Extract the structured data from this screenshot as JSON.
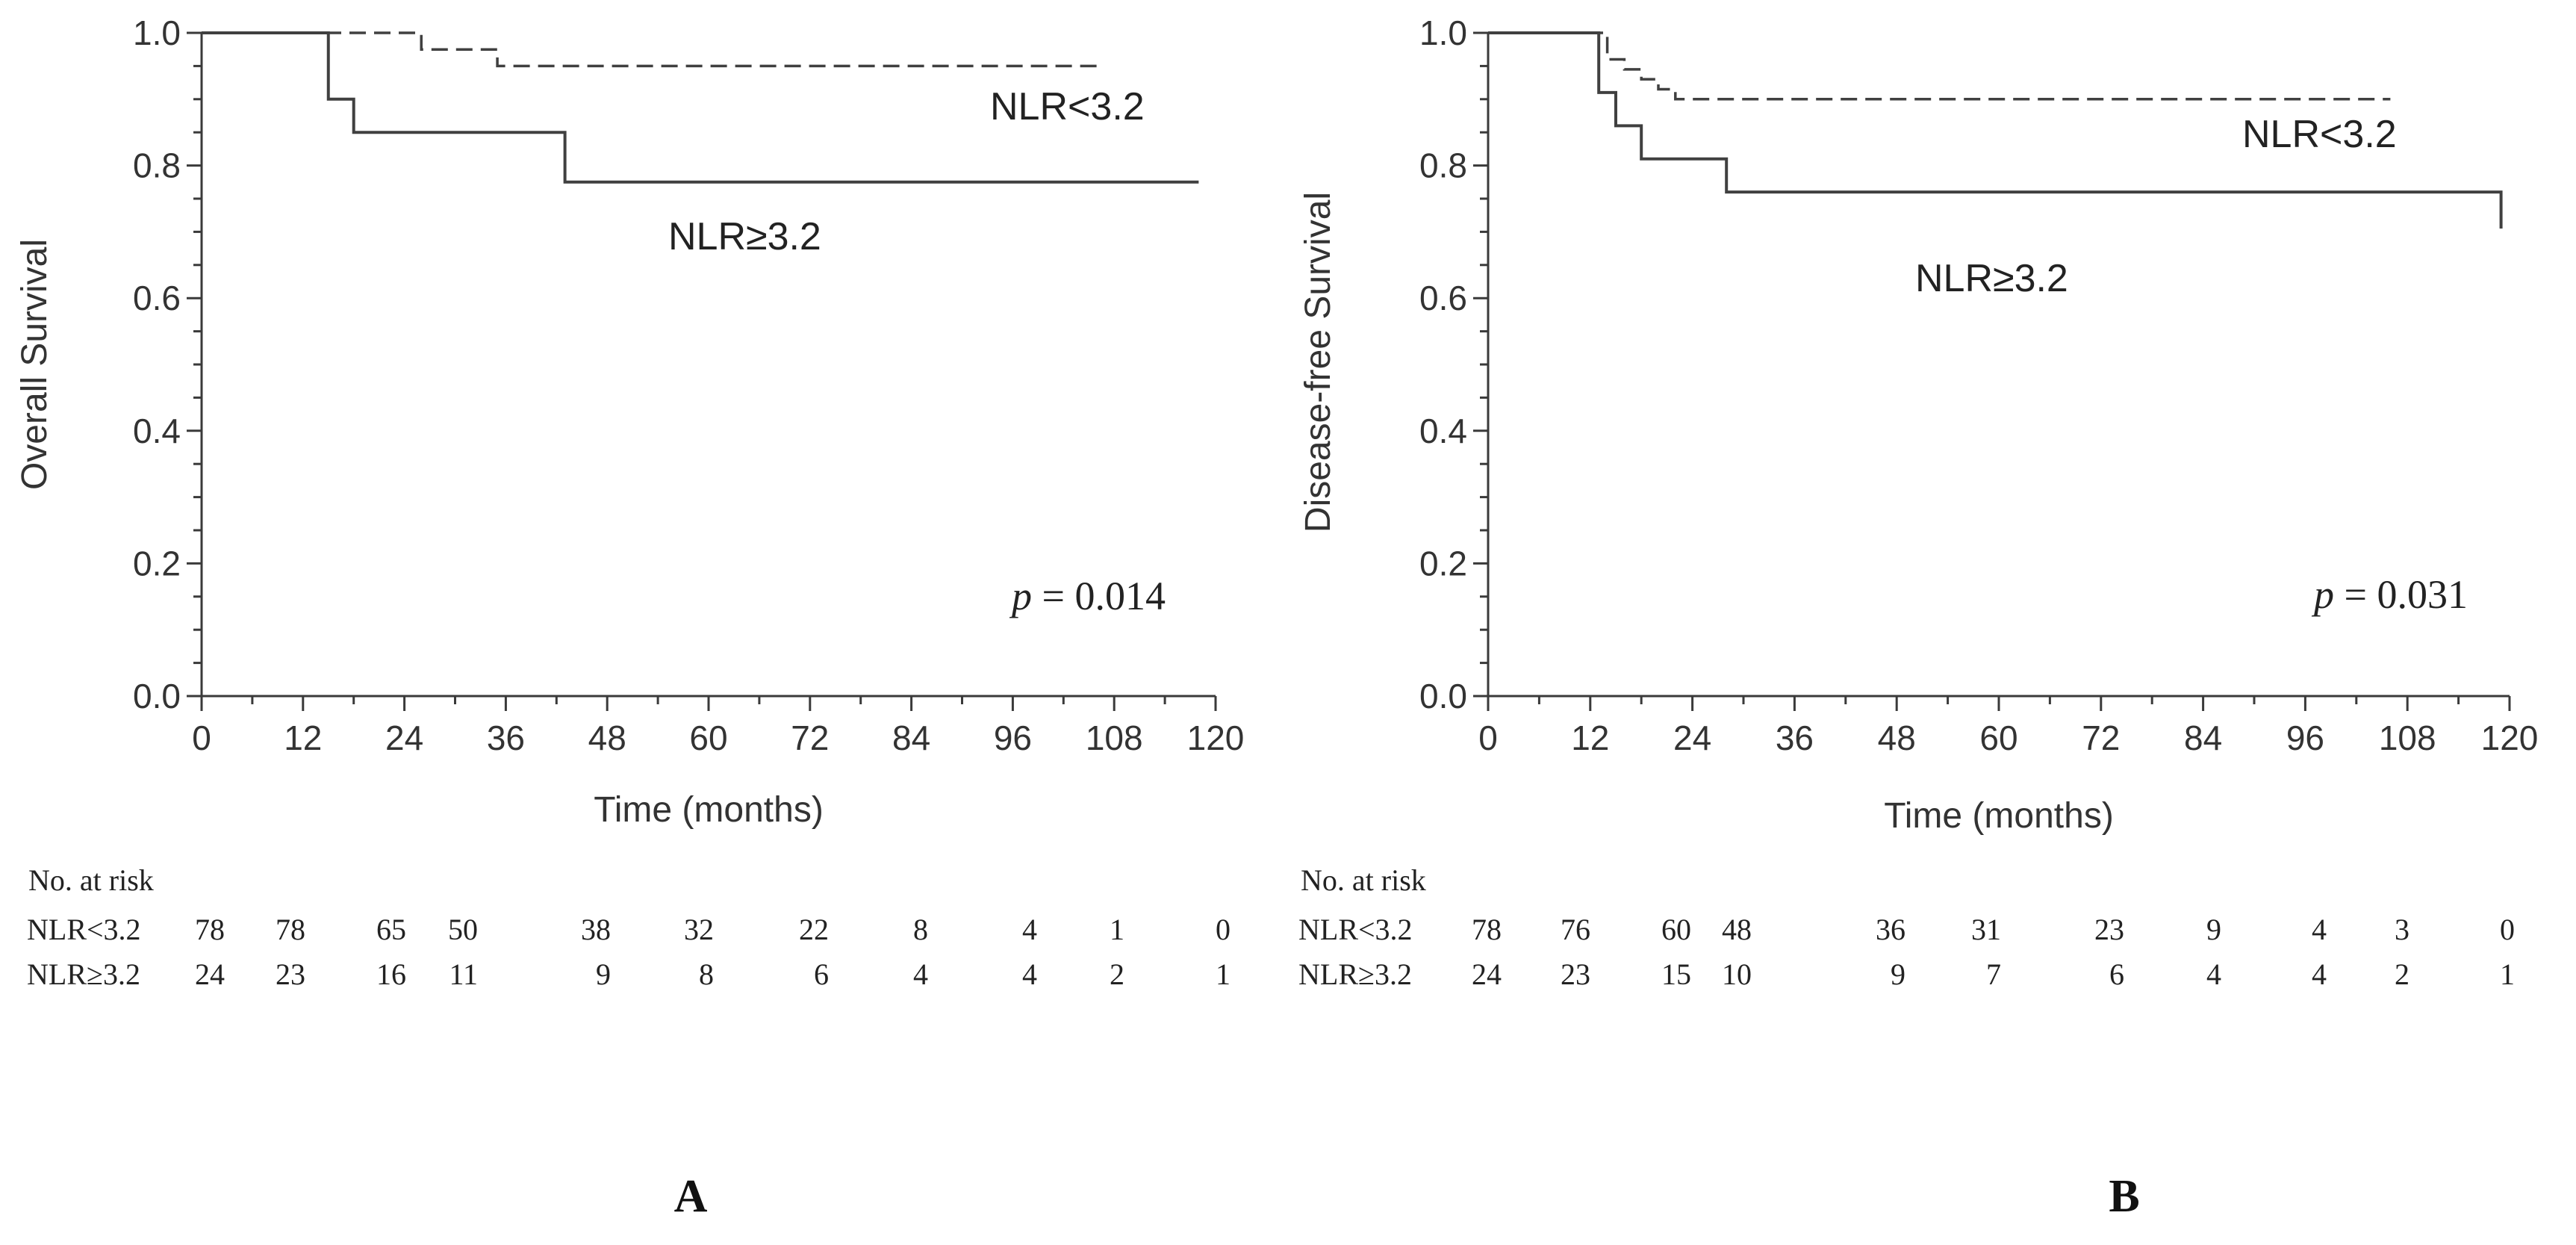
{
  "chart_data": [
    {
      "type": "line",
      "step": true,
      "panel": "A",
      "ylabel": "Overall Survival",
      "xlabel": "Time (months)",
      "xlim": [
        0,
        120
      ],
      "ylim": [
        0,
        1.0
      ],
      "x_ticks": [
        "0",
        "12",
        "24",
        "36",
        "48",
        "60",
        "72",
        "84",
        "96",
        "108",
        "120"
      ],
      "y_ticks": [
        "0.0",
        "0.2",
        "0.4",
        "0.6",
        "0.8",
        "1.0"
      ],
      "series": [
        {
          "name": "NLR<3.2",
          "style": "dashed",
          "x": [
            0,
            24,
            26,
            32,
            35,
            106
          ],
          "y": [
            1.0,
            1.0,
            0.975,
            0.975,
            0.95,
            0.95
          ]
        },
        {
          "name": "NLR≥3.2",
          "style": "solid",
          "x": [
            0,
            13,
            15,
            18,
            43,
            118
          ],
          "y": [
            1.0,
            1.0,
            0.9,
            0.85,
            0.775,
            0.775
          ]
        }
      ],
      "legend": [
        {
          "text": "NLR<3.2",
          "series": 0
        },
        {
          "text": "NLR≥3.2",
          "series": 1
        }
      ],
      "annotation": {
        "p_symbol": "p",
        "p_text": " = 0.014"
      },
      "risk_table": {
        "title": "No. at risk",
        "rows": [
          {
            "label": "NLR<3.2",
            "values": [
              "78",
              "78",
              "65",
              "50",
              "38",
              "32",
              "22",
              "8",
              "4",
              "1",
              "0"
            ]
          },
          {
            "label": "NLR≥3.2",
            "values": [
              "24",
              "23",
              "16",
              "11",
              "9",
              "8",
              "6",
              "4",
              "4",
              "2",
              "1"
            ]
          }
        ]
      }
    },
    {
      "type": "line",
      "step": true,
      "panel": "B",
      "ylabel": "Disease-free Survival",
      "xlabel": "Time (months)",
      "xlim": [
        0,
        120
      ],
      "ylim": [
        0,
        1.0
      ],
      "x_ticks": [
        "0",
        "12",
        "24",
        "36",
        "48",
        "60",
        "72",
        "84",
        "96",
        "108",
        "120"
      ],
      "y_ticks": [
        "0.0",
        "0.2",
        "0.4",
        "0.6",
        "0.8",
        "1.0"
      ],
      "series": [
        {
          "name": "NLR<3.2",
          "style": "dashed",
          "x": [
            0,
            12,
            14,
            16,
            18,
            20,
            22,
            106
          ],
          "y": [
            1.0,
            1.0,
            0.96,
            0.945,
            0.93,
            0.915,
            0.9,
            0.9
          ]
        },
        {
          "name": "NLR≥3.2",
          "style": "solid",
          "x": [
            0,
            12,
            13,
            15,
            18,
            28,
            119
          ],
          "y": [
            1.0,
            1.0,
            0.91,
            0.86,
            0.81,
            0.76,
            0.705
          ]
        }
      ],
      "legend": [
        {
          "text": "NLR<3.2",
          "series": 0
        },
        {
          "text": "NLR≥3.2",
          "series": 1
        }
      ],
      "annotation": {
        "p_symbol": "p",
        "p_text": " = 0.031"
      },
      "risk_table": {
        "title": "No. at risk",
        "rows": [
          {
            "label": "NLR<3.2",
            "values": [
              "78",
              "76",
              "60",
              "48",
              "36",
              "31",
              "23",
              "9",
              "4",
              "3",
              "0"
            ]
          },
          {
            "label": "NLR≥3.2",
            "values": [
              "24",
              "23",
              "15",
              "10",
              "9",
              "7",
              "6",
              "4",
              "4",
              "2",
              "1"
            ]
          }
        ]
      }
    }
  ]
}
